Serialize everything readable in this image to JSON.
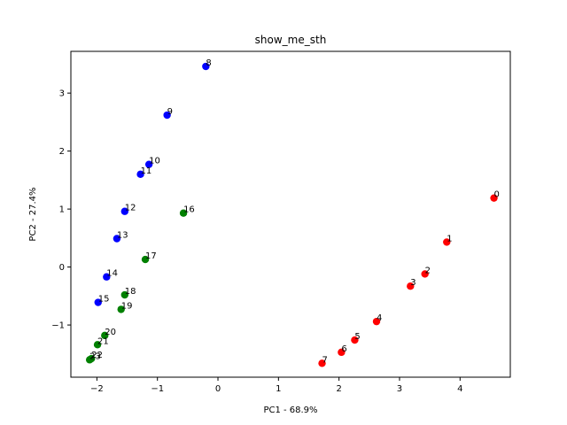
{
  "chart_data": {
    "type": "scatter",
    "title": "show_me_sth",
    "xlabel": "PC1 - 68.9%",
    "ylabel": "PC2 - 27.4%",
    "xlim": [
      -2.43,
      4.83
    ],
    "ylim": [
      -1.9,
      3.72
    ],
    "xticks": [
      -2,
      -1,
      0,
      1,
      2,
      3,
      4
    ],
    "yticks": [
      -1,
      0,
      1,
      2,
      3
    ],
    "tick_labels_x": [
      "−2",
      "−1",
      "0",
      "1",
      "2",
      "3",
      "4"
    ],
    "tick_labels_y": [
      "−1",
      "0",
      "1",
      "2",
      "3"
    ],
    "grid": false,
    "colors": {
      "red": "#ff0000",
      "blue": "#0000ff",
      "green": "#008000"
    },
    "points": [
      {
        "label": "0",
        "x": 4.56,
        "y": 1.19,
        "color": "red"
      },
      {
        "label": "1",
        "x": 3.78,
        "y": 0.43,
        "color": "red"
      },
      {
        "label": "2",
        "x": 3.42,
        "y": -0.12,
        "color": "red"
      },
      {
        "label": "3",
        "x": 3.18,
        "y": -0.33,
        "color": "red"
      },
      {
        "label": "4",
        "x": 2.62,
        "y": -0.94,
        "color": "red"
      },
      {
        "label": "5",
        "x": 2.26,
        "y": -1.26,
        "color": "red"
      },
      {
        "label": "6",
        "x": 2.04,
        "y": -1.47,
        "color": "red"
      },
      {
        "label": "7",
        "x": 1.72,
        "y": -1.66,
        "color": "red"
      },
      {
        "label": "8",
        "x": -0.2,
        "y": 3.46,
        "color": "blue"
      },
      {
        "label": "9",
        "x": -0.84,
        "y": 2.62,
        "color": "blue"
      },
      {
        "label": "10",
        "x": -1.14,
        "y": 1.77,
        "color": "blue"
      },
      {
        "label": "11",
        "x": -1.28,
        "y": 1.6,
        "color": "blue"
      },
      {
        "label": "12",
        "x": -1.54,
        "y": 0.96,
        "color": "blue"
      },
      {
        "label": "13",
        "x": -1.67,
        "y": 0.49,
        "color": "blue"
      },
      {
        "label": "14",
        "x": -1.84,
        "y": -0.17,
        "color": "blue"
      },
      {
        "label": "15",
        "x": -1.98,
        "y": -0.61,
        "color": "blue"
      },
      {
        "label": "16",
        "x": -0.57,
        "y": 0.93,
        "color": "green"
      },
      {
        "label": "17",
        "x": -1.2,
        "y": 0.13,
        "color": "green"
      },
      {
        "label": "18",
        "x": -1.54,
        "y": -0.48,
        "color": "green"
      },
      {
        "label": "19",
        "x": -1.6,
        "y": -0.73,
        "color": "green"
      },
      {
        "label": "20",
        "x": -1.87,
        "y": -1.18,
        "color": "green"
      },
      {
        "label": "21",
        "x": -1.99,
        "y": -1.34,
        "color": "green"
      },
      {
        "label": "22",
        "x": -2.09,
        "y": -1.58,
        "color": "green"
      },
      {
        "label": "23",
        "x": -2.12,
        "y": -1.6,
        "color": "green"
      }
    ]
  }
}
